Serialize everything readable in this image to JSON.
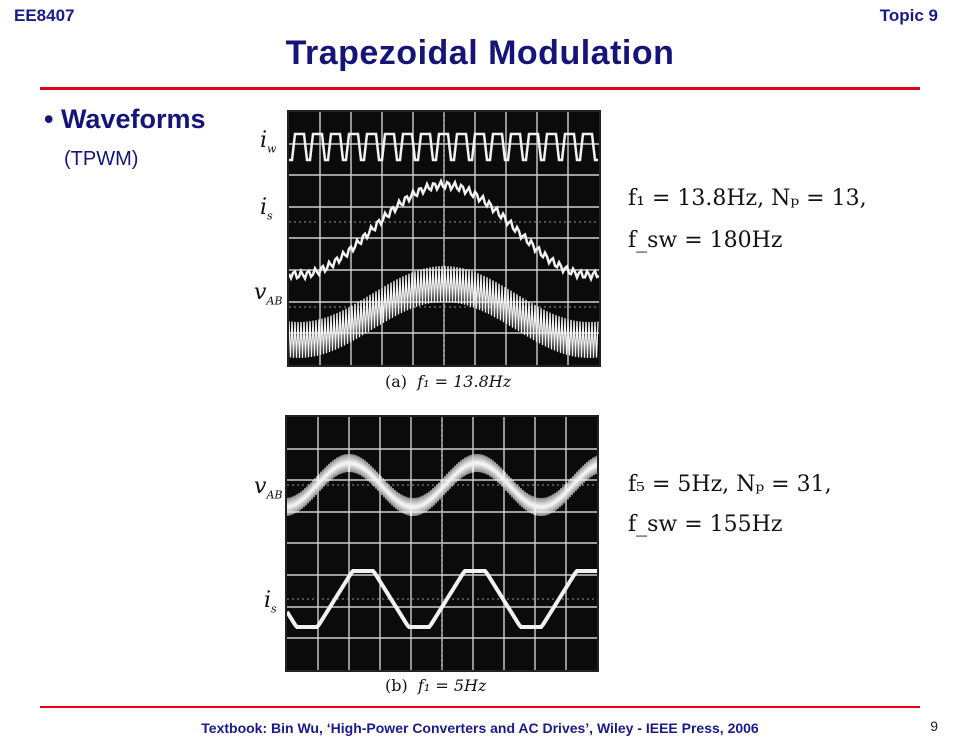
{
  "header": {
    "course": "EE8407",
    "topic": "Topic 9"
  },
  "title": "Trapezoidal Modulation",
  "bullet": {
    "heading": "• Waveforms",
    "sub": "(TPWM)"
  },
  "figure_a": {
    "caption_label": "(a)",
    "caption_eq": "f₁ = 13.8Hz",
    "signals": {
      "iw": "i",
      "iw_sub": "w",
      "is": "i",
      "is_sub": "s",
      "vab": "v",
      "vab_sub": "AB"
    },
    "params_line1": "f₁ = 13.8Hz, Nₚ = 13,",
    "params_line2": "f_sw = 180Hz"
  },
  "figure_b": {
    "caption_label": "(b)",
    "caption_eq": "f₁ = 5Hz",
    "signals": {
      "vab": "v",
      "vab_sub": "AB",
      "is": "i",
      "is_sub": "s"
    },
    "params_line1": "f₅ = 5Hz, Nₚ = 31,",
    "params_line2": "f_sw = 155Hz"
  },
  "footer": "Textbook: Bin Wu, ‘High-Power Converters and AC Drives’, Wiley - IEEE Press, 2006",
  "page_number": "9",
  "colors": {
    "title": "#14147a",
    "rule": "#e0001a",
    "scope_bg": "#0b0b0b",
    "trace": "#f2f2f2"
  }
}
